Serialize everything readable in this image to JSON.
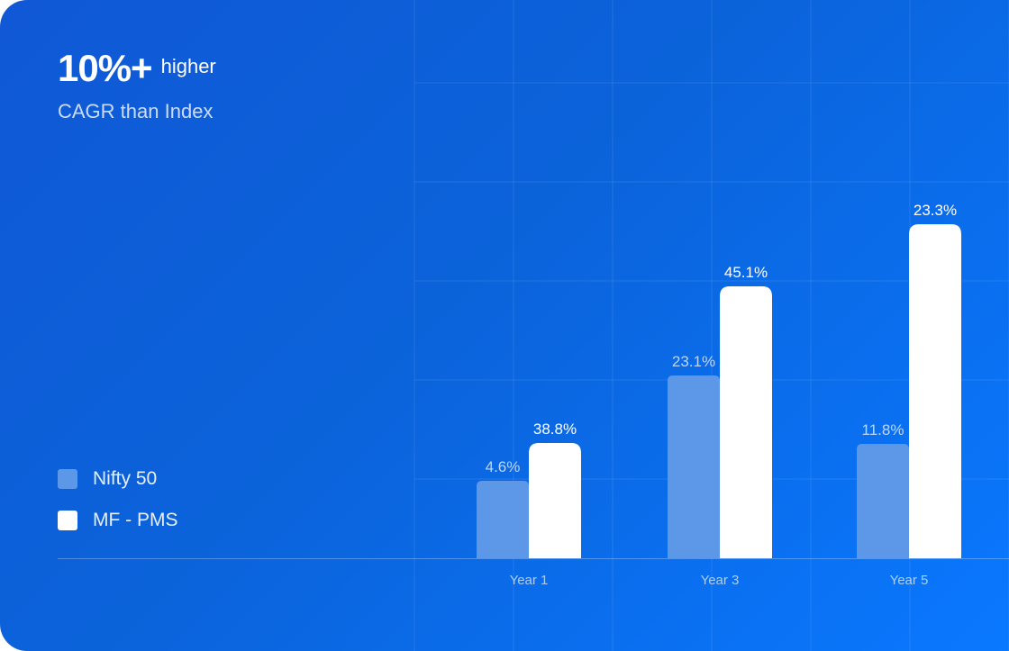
{
  "header": {
    "highlight": "10%+",
    "highlight_suffix": "higher",
    "subtitle": "CAGR than Index"
  },
  "colors": {
    "series_a": "#5d97e8",
    "series_b": "#ffffff",
    "background_start": "#1058d6",
    "background_end": "#0a78ff"
  },
  "chart_data": {
    "type": "bar",
    "categories": [
      "Year 1",
      "Year 3",
      "Year 5"
    ],
    "series": [
      {
        "name": "Nifty 50",
        "values": [
          4.6,
          23.1,
          11.8
        ],
        "labels": [
          "4.6%",
          "23.1%",
          "11.8%"
        ]
      },
      {
        "name": "MF - PMS",
        "values": [
          38.8,
          45.1,
          23.3
        ],
        "labels": [
          "38.8%",
          "45.1%",
          "23.3%"
        ]
      }
    ],
    "title": "",
    "xlabel": "",
    "ylabel": "",
    "legend": "bottom-left",
    "grid": true
  }
}
